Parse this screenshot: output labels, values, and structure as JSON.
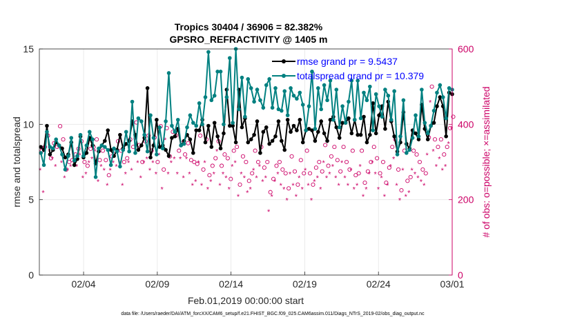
{
  "chart_data": {
    "type": "line",
    "title": "Tropics 30404 / 36906 = 82.382%",
    "subtitle": "GPSRO_REFRACTIVITY @ 1405 m",
    "xlabel": "Feb.01,2019 00:00:00 start",
    "ylabel_left": "rmse and totalspread",
    "ylabel_right": "# of obs: o=possible; ×=assimilated",
    "footer": "data file: /Users/raeder/DAI/ATM_forcXX/CAM6_setup/f.e21.FHIST_BGC.f09_025.CAM6assim.011/Diags_NTrS_2019-02/obs_diag_output.nc",
    "xlim": [
      0,
      28
    ],
    "x_tick_values": [
      3,
      8,
      13,
      18,
      23,
      28
    ],
    "x_tick_labels": [
      "02/04",
      "02/09",
      "02/14",
      "02/19",
      "02/24",
      "03/01"
    ],
    "ylim_left": [
      0,
      15
    ],
    "y_left_ticks": [
      0,
      5,
      10,
      15
    ],
    "ylim_right": [
      0,
      600
    ],
    "y_right_ticks": [
      0,
      200,
      400,
      600
    ],
    "legend": [
      "rmse grand pr = 9.5437",
      "totalspread grand pr = 10.379"
    ],
    "colors": {
      "rmse": "#000000",
      "spread": "#008080",
      "obs": "#cc0066",
      "legend_text": "#0000ff"
    },
    "series": [
      {
        "name": "rmse",
        "axis": "left",
        "values": [
          8.5,
          8.3,
          9.9,
          8.0,
          8.3,
          8.8,
          8.6,
          8.4,
          7.8,
          8.0,
          8.8,
          7.3,
          7.7,
          9.2,
          7.8,
          8.1,
          9.1,
          8.6,
          7.4,
          8.2,
          8.6,
          8.9,
          9.6,
          8.3,
          7.9,
          8.3,
          9.3,
          8.4,
          8.7,
          8.9,
          10.2,
          9.3,
          8.3,
          8.6,
          9.1,
          12.4,
          7.8,
          8.6,
          10.3,
          8.5,
          8.6,
          8.3,
          7.9,
          9.1,
          9.2,
          9.7,
          8.6,
          8.9,
          9.3,
          9.0,
          8.1,
          9.6,
          9.6,
          10.3,
          8.8,
          9.9,
          8.5,
          10.1,
          9.2,
          8.4,
          9.4,
          12.3,
          9.9,
          9.9,
          8.8,
          12.3,
          9.8,
          10.4,
          8.8,
          9.0,
          9.3,
          10.2,
          8.1,
          9.5,
          9.8,
          8.7,
          8.9,
          9.2,
          10.2,
          8.9,
          8.3,
          10.3,
          9.5,
          9.9,
          9.6,
          10.3,
          8.8,
          9.6,
          9.7,
          9.6,
          8.9,
          9.5,
          10.2,
          9.4,
          8.9,
          10.3,
          10.5,
          9.8,
          9.1,
          10.1,
          10.1,
          10.4,
          9.4,
          10.3,
          9.3,
          9.3,
          10.5,
          8.8,
          9.3,
          11.4,
          9.4,
          10.6,
          11.2,
          9.7,
          11.5,
          10.2,
          9.2,
          8.2,
          8.8,
          10.8,
          8.7,
          8.4,
          9.6,
          9.4,
          9.0,
          11.3,
          9.7,
          9.0,
          9.9,
          10.1,
          11.2,
          11.8,
          11.2,
          9.2,
          12.1,
          12.0
        ]
      },
      {
        "name": "totalspread",
        "axis": "left",
        "values": [
          8.1,
          7.3,
          9.5,
          8.5,
          8.4,
          9.0,
          8.6,
          8.0,
          7.0,
          7.9,
          9.1,
          7.6,
          7.9,
          9.3,
          7.9,
          8.6,
          9.5,
          9.0,
          6.5,
          8.4,
          8.6,
          8.5,
          8.3,
          7.3,
          8.4,
          8.2,
          7.2,
          8.3,
          9.5,
          8.2,
          11.5,
          8.1,
          10.4,
          10.2,
          9.3,
          8.2,
          10.6,
          9.1,
          8.0,
          9.8,
          8.4,
          10.2,
          13.4,
          9.9,
          9.5,
          10.3,
          8.6,
          8.7,
          9.8,
          10.6,
          10.1,
          9.9,
          11.4,
          10.0,
          11.8,
          14.8,
          11.6,
          11.9,
          13.5,
          13.5,
          10.0,
          11.8,
          14.4,
          10.1,
          15.0,
          11.0,
          13.1,
          10.5,
          13.0,
          12.4,
          11.5,
          12.3,
          11.6,
          11.1,
          12.6,
          13.0,
          11.1,
          12.4,
          11.0,
          10.9,
          12.2,
          10.6,
          12.4,
          11.9,
          11.7,
          12.1,
          11.3,
          9.6,
          11.2,
          13.5,
          9.7,
          12.4,
          11.0,
          12.6,
          11.6,
          12.9,
          10.3,
          12.3,
          9.8,
          11.2,
          10.1,
          11.5,
          12.9,
          10.3,
          12.9,
          10.4,
          12.1,
          11.6,
          12.5,
          9.6,
          12.0,
          11.2,
          10.5,
          12.3,
          11.9,
          10.3,
          12.2,
          8.0,
          9.2,
          11.6,
          8.1,
          8.3,
          9.1,
          10.6,
          9.2,
          12.3,
          10.1,
          9.4,
          9.9,
          10.9,
          12.1,
          12.6,
          11.8,
          10.4,
          12.4,
          12.3
        ]
      },
      {
        "name": "obs_possible",
        "axis": "right",
        "values": [
          330,
          340,
          370,
          310,
          350,
          340,
          395,
          360,
          280,
          300,
          305,
          320,
          335,
          355,
          300,
          290,
          335,
          340,
          360,
          305,
          330,
          305,
          265,
          315,
          330,
          355,
          330,
          300,
          310,
          360,
          340,
          405,
          345,
          300,
          355,
          370,
          330,
          365,
          300,
          395,
          280,
          390,
          315,
          380,
          370,
          330,
          350,
          320,
          350,
          305,
          300,
          295,
          370,
          280,
          360,
          265,
          290,
          310,
          355,
          290,
          320,
          310,
          255,
          330,
          340,
          240,
          315,
          300,
          250,
          270,
          330,
          300,
          340,
          285,
          300,
          220,
          255,
          290,
          300,
          280,
          270,
          230,
          315,
          275,
          240,
          305,
          270,
          330,
          270,
          240,
          285,
          300,
          275,
          345,
          290,
          315,
          340,
          305,
          275,
          340,
          300,
          280,
          330,
          265,
          270,
          330,
          245,
          275,
          300,
          340,
          310,
          270,
          300,
          245,
          285,
          340,
          360,
          280,
          225,
          330,
          250,
          260,
          330,
          320,
          300,
          280,
          270,
          365,
          500,
          360,
          340,
          360,
          320,
          340,
          390,
          420
        ]
      },
      {
        "name": "obs_assimilated",
        "axis": "right",
        "values": [
          280,
          220,
          380,
          330,
          310,
          290,
          340,
          300,
          260,
          280,
          290,
          320,
          290,
          320,
          260,
          270,
          300,
          310,
          330,
          250,
          290,
          280,
          240,
          280,
          300,
          290,
          300,
          240,
          270,
          300,
          280,
          360,
          300,
          260,
          300,
          310,
          280,
          300,
          270,
          320,
          230,
          360,
          270,
          300,
          310,
          270,
          310,
          260,
          310,
          270,
          240,
          250,
          300,
          240,
          300,
          230,
          250,
          270,
          330,
          240,
          270,
          260,
          230,
          290,
          300,
          210,
          270,
          260,
          220,
          230,
          280,
          260,
          290,
          250,
          260,
          170,
          210,
          250,
          270,
          240,
          230,
          200,
          270,
          240,
          210,
          260,
          230,
          280,
          240,
          200,
          250,
          260,
          230,
          300,
          260,
          270,
          290,
          260,
          240,
          300,
          260,
          240,
          280,
          230,
          240,
          290,
          210,
          230,
          270,
          300,
          270,
          230,
          260,
          210,
          240,
          290,
          310,
          240,
          200,
          280,
          210,
          220,
          280,
          270,
          260,
          250,
          240,
          320,
          460,
          330,
          290,
          310,
          280,
          290,
          350,
          390
        ]
      }
    ]
  }
}
